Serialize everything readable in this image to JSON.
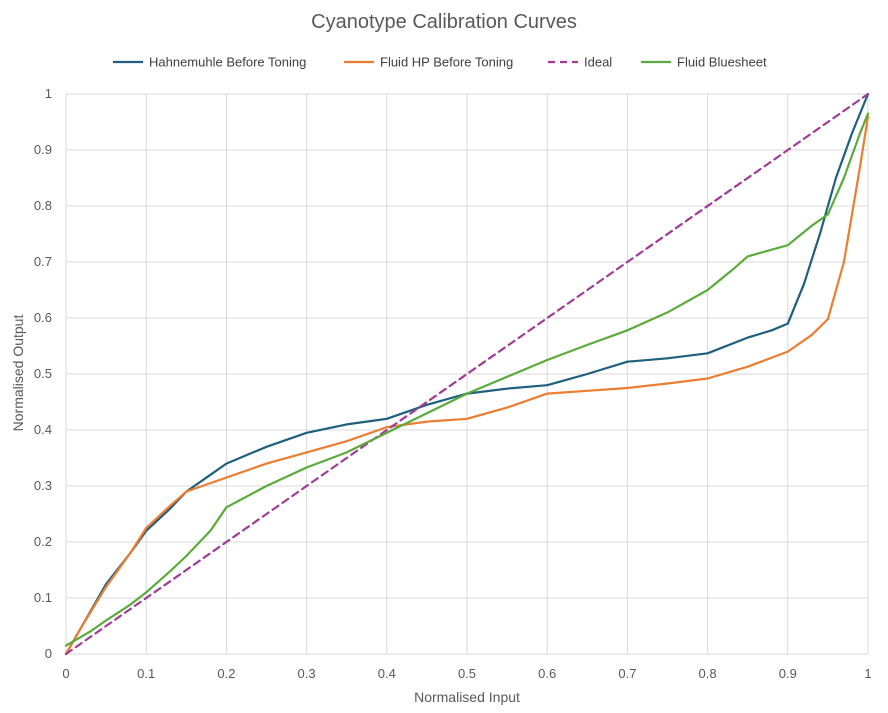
{
  "chart_data": {
    "type": "line",
    "title": "Cyanotype Calibration Curves",
    "xlabel": "Normalised Input",
    "ylabel": "Normalised Output",
    "xlim": [
      0,
      1
    ],
    "ylim": [
      0,
      1
    ],
    "x_ticks": [
      "0",
      "0.1",
      "0.2",
      "0.3",
      "0.4",
      "0.5",
      "0.6",
      "0.7",
      "0.8",
      "0.9",
      "1"
    ],
    "y_ticks": [
      "0",
      "0.1",
      "0.2",
      "0.3",
      "0.4",
      "0.5",
      "0.6",
      "0.7",
      "0.8",
      "0.9",
      "1"
    ],
    "grid": true,
    "legend_position": "top",
    "series": [
      {
        "name": "Hahnemuhle Before Toning",
        "color": "#1f5f7f",
        "dash": false,
        "points": [
          [
            0,
            0.0
          ],
          [
            0.02,
            0.05
          ],
          [
            0.05,
            0.125
          ],
          [
            0.08,
            0.18
          ],
          [
            0.1,
            0.22
          ],
          [
            0.13,
            0.26
          ],
          [
            0.15,
            0.29
          ],
          [
            0.18,
            0.32
          ],
          [
            0.2,
            0.34
          ],
          [
            0.25,
            0.37
          ],
          [
            0.3,
            0.395
          ],
          [
            0.35,
            0.41
          ],
          [
            0.4,
            0.42
          ],
          [
            0.45,
            0.445
          ],
          [
            0.5,
            0.465
          ],
          [
            0.55,
            0.474
          ],
          [
            0.6,
            0.48
          ],
          [
            0.65,
            0.5
          ],
          [
            0.7,
            0.522
          ],
          [
            0.75,
            0.528
          ],
          [
            0.8,
            0.537
          ],
          [
            0.85,
            0.565
          ],
          [
            0.88,
            0.578
          ],
          [
            0.9,
            0.59
          ],
          [
            0.92,
            0.66
          ],
          [
            0.94,
            0.75
          ],
          [
            0.96,
            0.85
          ],
          [
            0.98,
            0.93
          ],
          [
            1.0,
            1.0
          ]
        ]
      },
      {
        "name": "Fluid HP Before Toning",
        "color": "#ed7d31",
        "dash": false,
        "points": [
          [
            0,
            0.0
          ],
          [
            0.02,
            0.05
          ],
          [
            0.05,
            0.12
          ],
          [
            0.08,
            0.18
          ],
          [
            0.1,
            0.225
          ],
          [
            0.13,
            0.265
          ],
          [
            0.15,
            0.29
          ],
          [
            0.17,
            0.3
          ],
          [
            0.2,
            0.315
          ],
          [
            0.25,
            0.34
          ],
          [
            0.3,
            0.36
          ],
          [
            0.35,
            0.38
          ],
          [
            0.4,
            0.405
          ],
          [
            0.45,
            0.415
          ],
          [
            0.5,
            0.42
          ],
          [
            0.55,
            0.44
          ],
          [
            0.6,
            0.465
          ],
          [
            0.65,
            0.47
          ],
          [
            0.7,
            0.475
          ],
          [
            0.75,
            0.483
          ],
          [
            0.8,
            0.492
          ],
          [
            0.85,
            0.513
          ],
          [
            0.9,
            0.54
          ],
          [
            0.93,
            0.57
          ],
          [
            0.95,
            0.598
          ],
          [
            0.97,
            0.7
          ],
          [
            0.99,
            0.87
          ],
          [
            1.0,
            0.96
          ]
        ]
      },
      {
        "name": "Ideal",
        "color": "#a03c96",
        "dash": true,
        "points": [
          [
            0,
            0
          ],
          [
            1,
            1
          ]
        ]
      },
      {
        "name": "Fluid Bluesheet",
        "color": "#5aab3c",
        "dash": false,
        "points": [
          [
            0,
            0.015
          ],
          [
            0.03,
            0.04
          ],
          [
            0.05,
            0.06
          ],
          [
            0.08,
            0.088
          ],
          [
            0.1,
            0.11
          ],
          [
            0.13,
            0.148
          ],
          [
            0.15,
            0.175
          ],
          [
            0.18,
            0.22
          ],
          [
            0.2,
            0.262
          ],
          [
            0.25,
            0.3
          ],
          [
            0.3,
            0.333
          ],
          [
            0.35,
            0.36
          ],
          [
            0.4,
            0.395
          ],
          [
            0.45,
            0.43
          ],
          [
            0.5,
            0.465
          ],
          [
            0.55,
            0.495
          ],
          [
            0.6,
            0.525
          ],
          [
            0.65,
            0.552
          ],
          [
            0.7,
            0.578
          ],
          [
            0.75,
            0.61
          ],
          [
            0.8,
            0.65
          ],
          [
            0.83,
            0.685
          ],
          [
            0.85,
            0.71
          ],
          [
            0.9,
            0.73
          ],
          [
            0.93,
            0.765
          ],
          [
            0.95,
            0.785
          ],
          [
            0.97,
            0.85
          ],
          [
            0.99,
            0.93
          ],
          [
            1.0,
            0.965
          ]
        ]
      }
    ]
  }
}
